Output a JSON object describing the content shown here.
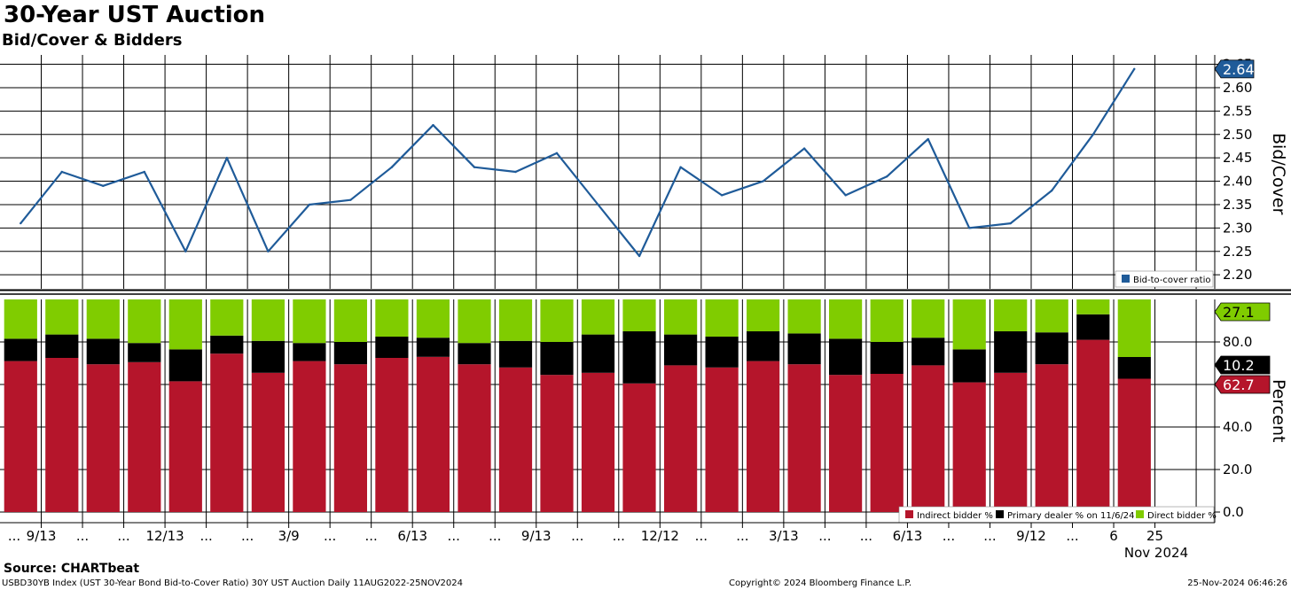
{
  "header": {
    "title": "30-Year UST Auction",
    "subtitle": "Bid/Cover & Bidders"
  },
  "footer": {
    "source": "Source: CHARTbeat",
    "left": "USBD30YB Index (UST 30-Year Bond Bid-to-Cover Ratio) 30Y UST Auction  Daily 11AUG2022-25NOV2024",
    "middle": "Copyright© 2024 Bloomberg Finance L.P.",
    "right": "25-Nov-2024 06:46:26"
  },
  "chart_data": [
    {
      "type": "line",
      "ylabel": "Bid/Cover",
      "ylim": [
        2.17,
        2.67
      ],
      "yticks": [
        "2.20",
        "2.25",
        "2.30",
        "2.35",
        "2.40",
        "2.45",
        "2.50",
        "2.55",
        "2.60",
        "2.65"
      ],
      "grid": true,
      "legend": "bottom-right",
      "last_value_label": "2.64",
      "series": [
        {
          "name": "Bid-to-cover ratio",
          "color": "#1f5b99",
          "values": [
            2.31,
            2.42,
            2.39,
            2.42,
            2.25,
            2.45,
            2.25,
            2.35,
            2.36,
            2.43,
            2.52,
            2.43,
            2.42,
            2.46,
            2.35,
            2.24,
            2.43,
            2.37,
            2.4,
            2.47,
            2.37,
            2.41,
            2.49,
            2.3,
            2.31,
            2.38,
            2.5,
            2.64
          ]
        }
      ]
    },
    {
      "type": "bar",
      "stacked": true,
      "ylabel": "Percent",
      "ylim": [
        -5,
        100
      ],
      "yticks": [
        "0.0",
        "20.0",
        "40.0",
        "60.0",
        "80.0"
      ],
      "grid": true,
      "legend": "bottom-right",
      "x_tick_labels": [
        "...",
        "9/13",
        "...",
        "...",
        "12/13",
        "...",
        "...",
        "3/9",
        "...",
        "...",
        "6/13",
        "...",
        "...",
        "9/13",
        "...",
        "...",
        "12/12",
        "...",
        "...",
        "3/13",
        "...",
        "...",
        "6/13",
        "...",
        "...",
        "9/12",
        "...",
        "6",
        "25"
      ],
      "x_axis_caption": "Nov 2024",
      "last_value_labels": [
        "27.1",
        "10.2",
        "62.7"
      ],
      "series": [
        {
          "name": "Indirect bidder %",
          "color": "#b5152b",
          "values": [
            71,
            72.5,
            69.5,
            70.5,
            61.5,
            74.5,
            65.5,
            71,
            69.5,
            72.5,
            73,
            69.5,
            68,
            64.5,
            65.5,
            60.5,
            69,
            68,
            71,
            69.5,
            64.5,
            65,
            69,
            61,
            65.5,
            69.5,
            81,
            62.7
          ]
        },
        {
          "name": "Primary dealer % on 11/6/24",
          "color": "#000000",
          "values": [
            10.5,
            11,
            12,
            9,
            15,
            8.5,
            15,
            8.5,
            10.5,
            10,
            9,
            10,
            12.5,
            15.5,
            18,
            24.5,
            14.5,
            14.5,
            14,
            14.5,
            17,
            15,
            13,
            15.5,
            19.5,
            15,
            12,
            10.2
          ]
        },
        {
          "name": "Direct bidder %",
          "color": "#80cc00",
          "values": [
            18.5,
            16.5,
            18.5,
            20.5,
            23.5,
            17,
            19.5,
            20.5,
            20,
            17.5,
            18,
            20.5,
            19.5,
            20,
            16.5,
            15,
            16.5,
            17.5,
            15,
            16,
            18.5,
            20,
            18,
            23.5,
            15,
            15.5,
            7,
            27.1
          ]
        }
      ]
    }
  ]
}
